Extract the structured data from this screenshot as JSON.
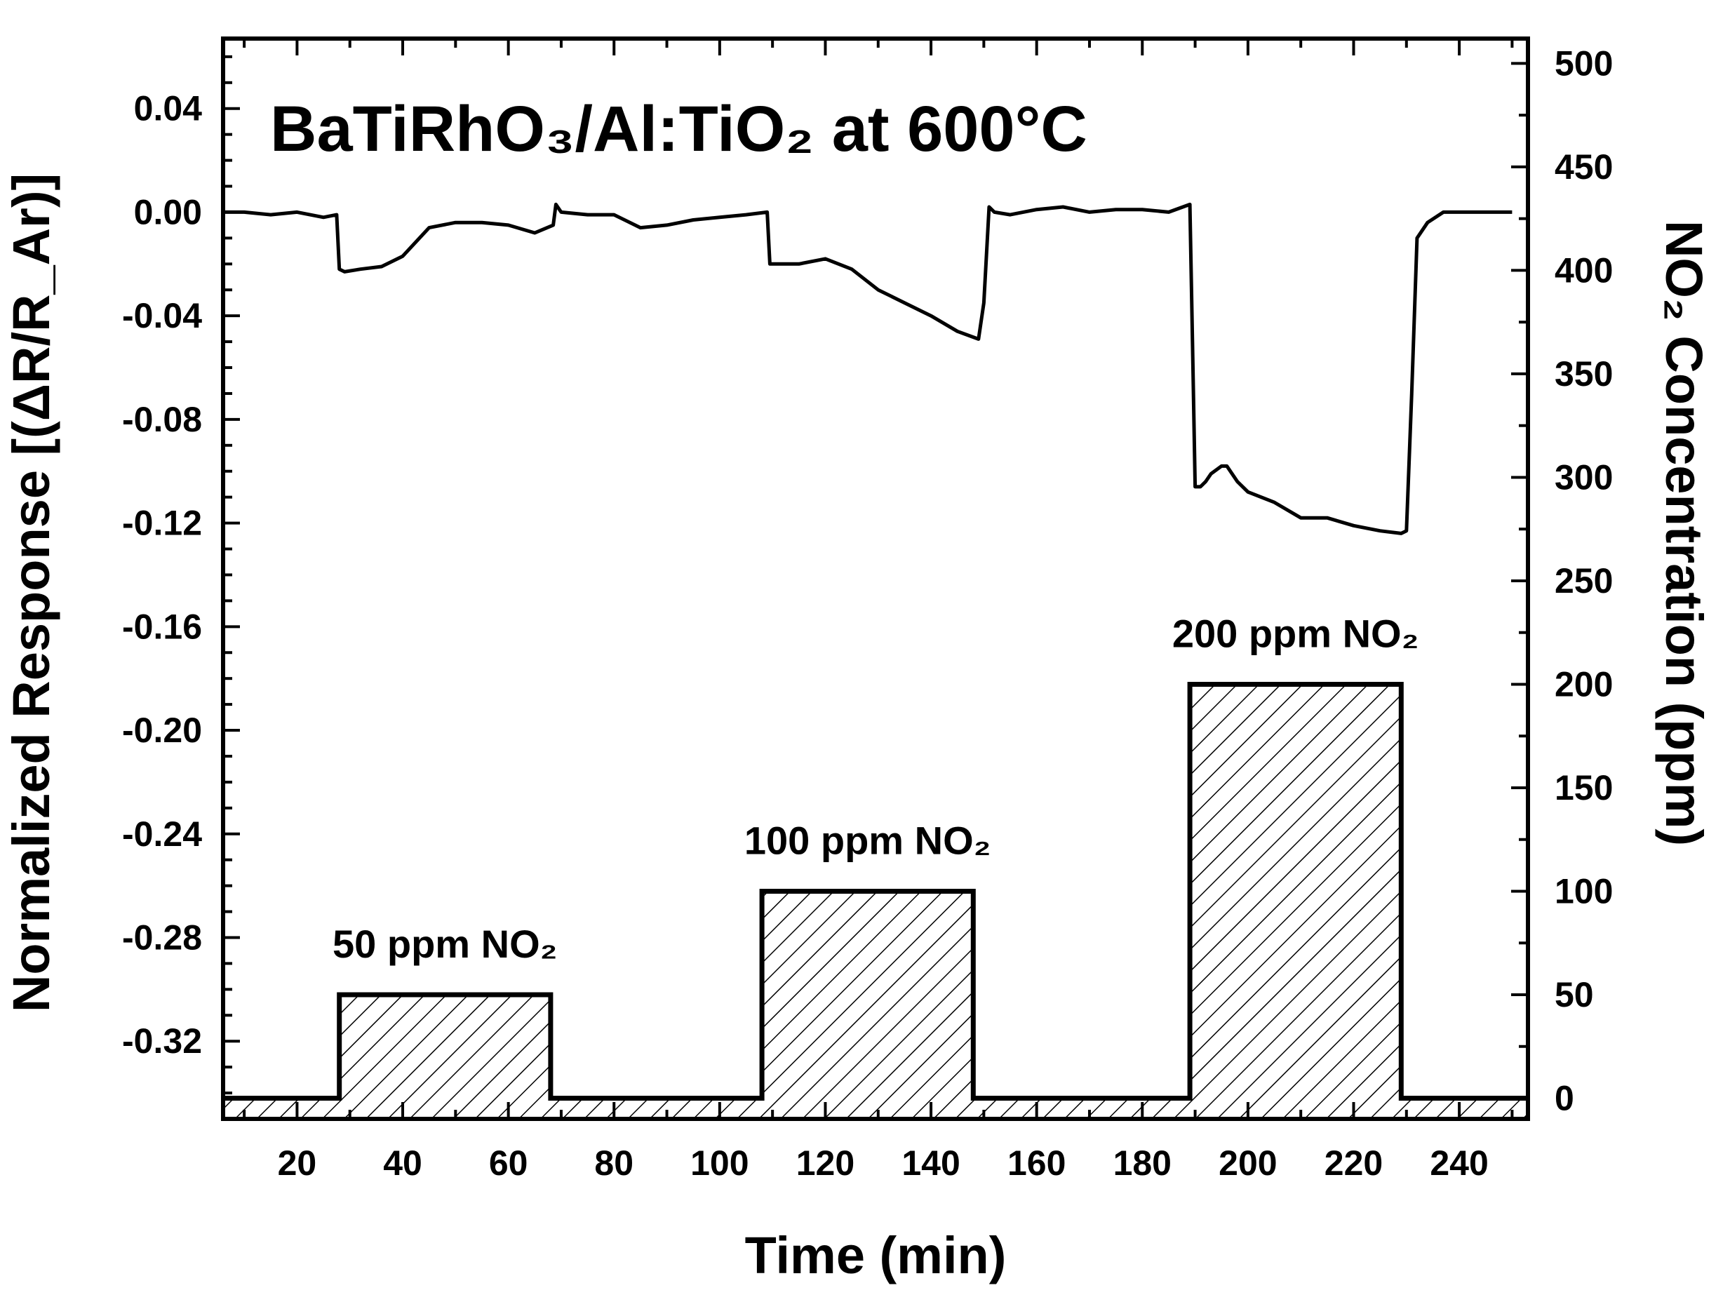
{
  "chart_data": {
    "type": "line",
    "title": "BaTiRhO₃/Al:TiO₂ at 600°C",
    "xlabel": "Time (min)",
    "ylabel_left": "Normalized Response [(ΔR/R_Ar)]",
    "ylabel_right": "NO₂ Concentration (ppm)",
    "xlim": [
      6,
      253
    ],
    "ylim_left": [
      -0.35,
      0.067
    ],
    "ylim_right": [
      -10,
      512
    ],
    "x_ticks": [
      20,
      40,
      60,
      80,
      100,
      120,
      140,
      160,
      180,
      200,
      220,
      240
    ],
    "y_left_ticks": [
      "0.04",
      "0.00",
      "-0.04",
      "-0.08",
      "-0.12",
      "-0.16",
      "-0.20",
      "-0.24",
      "-0.28",
      "-0.32"
    ],
    "y_right_ticks": [
      "500",
      "450",
      "400",
      "350",
      "300",
      "250",
      "200",
      "150",
      "100",
      "50",
      "0"
    ],
    "grid": false,
    "series": [
      {
        "axis": "left",
        "style": "line",
        "color": "#000000",
        "x": [
          6,
          10,
          15,
          20,
          25,
          27.5,
          28,
          29,
          32,
          36,
          40,
          45,
          50,
          55,
          60,
          65,
          68.5,
          69,
          70,
          75,
          80,
          85,
          90,
          95,
          100,
          105,
          109,
          109.5,
          112,
          115,
          120,
          125,
          130,
          135,
          140,
          145,
          149,
          150,
          151,
          152,
          155,
          160,
          165,
          170,
          175,
          180,
          185,
          189,
          189.5,
          190,
          191,
          192,
          193,
          195,
          196,
          198,
          200,
          205,
          210,
          215,
          220,
          225,
          229,
          230,
          231,
          232,
          234,
          237,
          240,
          245,
          250
        ],
        "y": [
          0,
          0,
          -0.001,
          0,
          -0.002,
          -0.001,
          -0.022,
          -0.023,
          -0.022,
          -0.021,
          -0.017,
          -0.006,
          -0.004,
          -0.004,
          -0.005,
          -0.008,
          -0.005,
          0.003,
          0,
          -0.001,
          -0.001,
          -0.006,
          -0.005,
          -0.003,
          -0.002,
          -0.001,
          0,
          -0.02,
          -0.02,
          -0.02,
          -0.018,
          -0.022,
          -0.03,
          -0.035,
          -0.04,
          -0.046,
          -0.049,
          -0.035,
          0.002,
          0,
          -0.001,
          0.001,
          0.002,
          0,
          0.001,
          0.001,
          0,
          0.003,
          -0.05,
          -0.106,
          -0.106,
          -0.104,
          -0.101,
          -0.098,
          -0.098,
          -0.104,
          -0.108,
          -0.112,
          -0.118,
          -0.118,
          -0.121,
          -0.123,
          -0.124,
          -0.123,
          -0.07,
          -0.01,
          -0.004,
          0,
          0,
          0,
          0
        ]
      },
      {
        "axis": "right",
        "style": "step-hatched",
        "color": "#000000",
        "x": [
          6,
          28,
          28,
          68,
          68,
          108,
          108,
          148,
          148,
          189,
          189,
          229,
          229,
          253
        ],
        "y": [
          0,
          0,
          50,
          50,
          0,
          0,
          100,
          100,
          0,
          0,
          200,
          200,
          0,
          0
        ]
      }
    ],
    "annotations": [
      {
        "text": "50 ppm NO₂",
        "x": 48,
        "y": 68
      },
      {
        "text": "100 ppm NO₂",
        "x": 128,
        "y": 118
      },
      {
        "text": "200 ppm NO₂",
        "x": 209,
        "y": 218
      }
    ]
  }
}
